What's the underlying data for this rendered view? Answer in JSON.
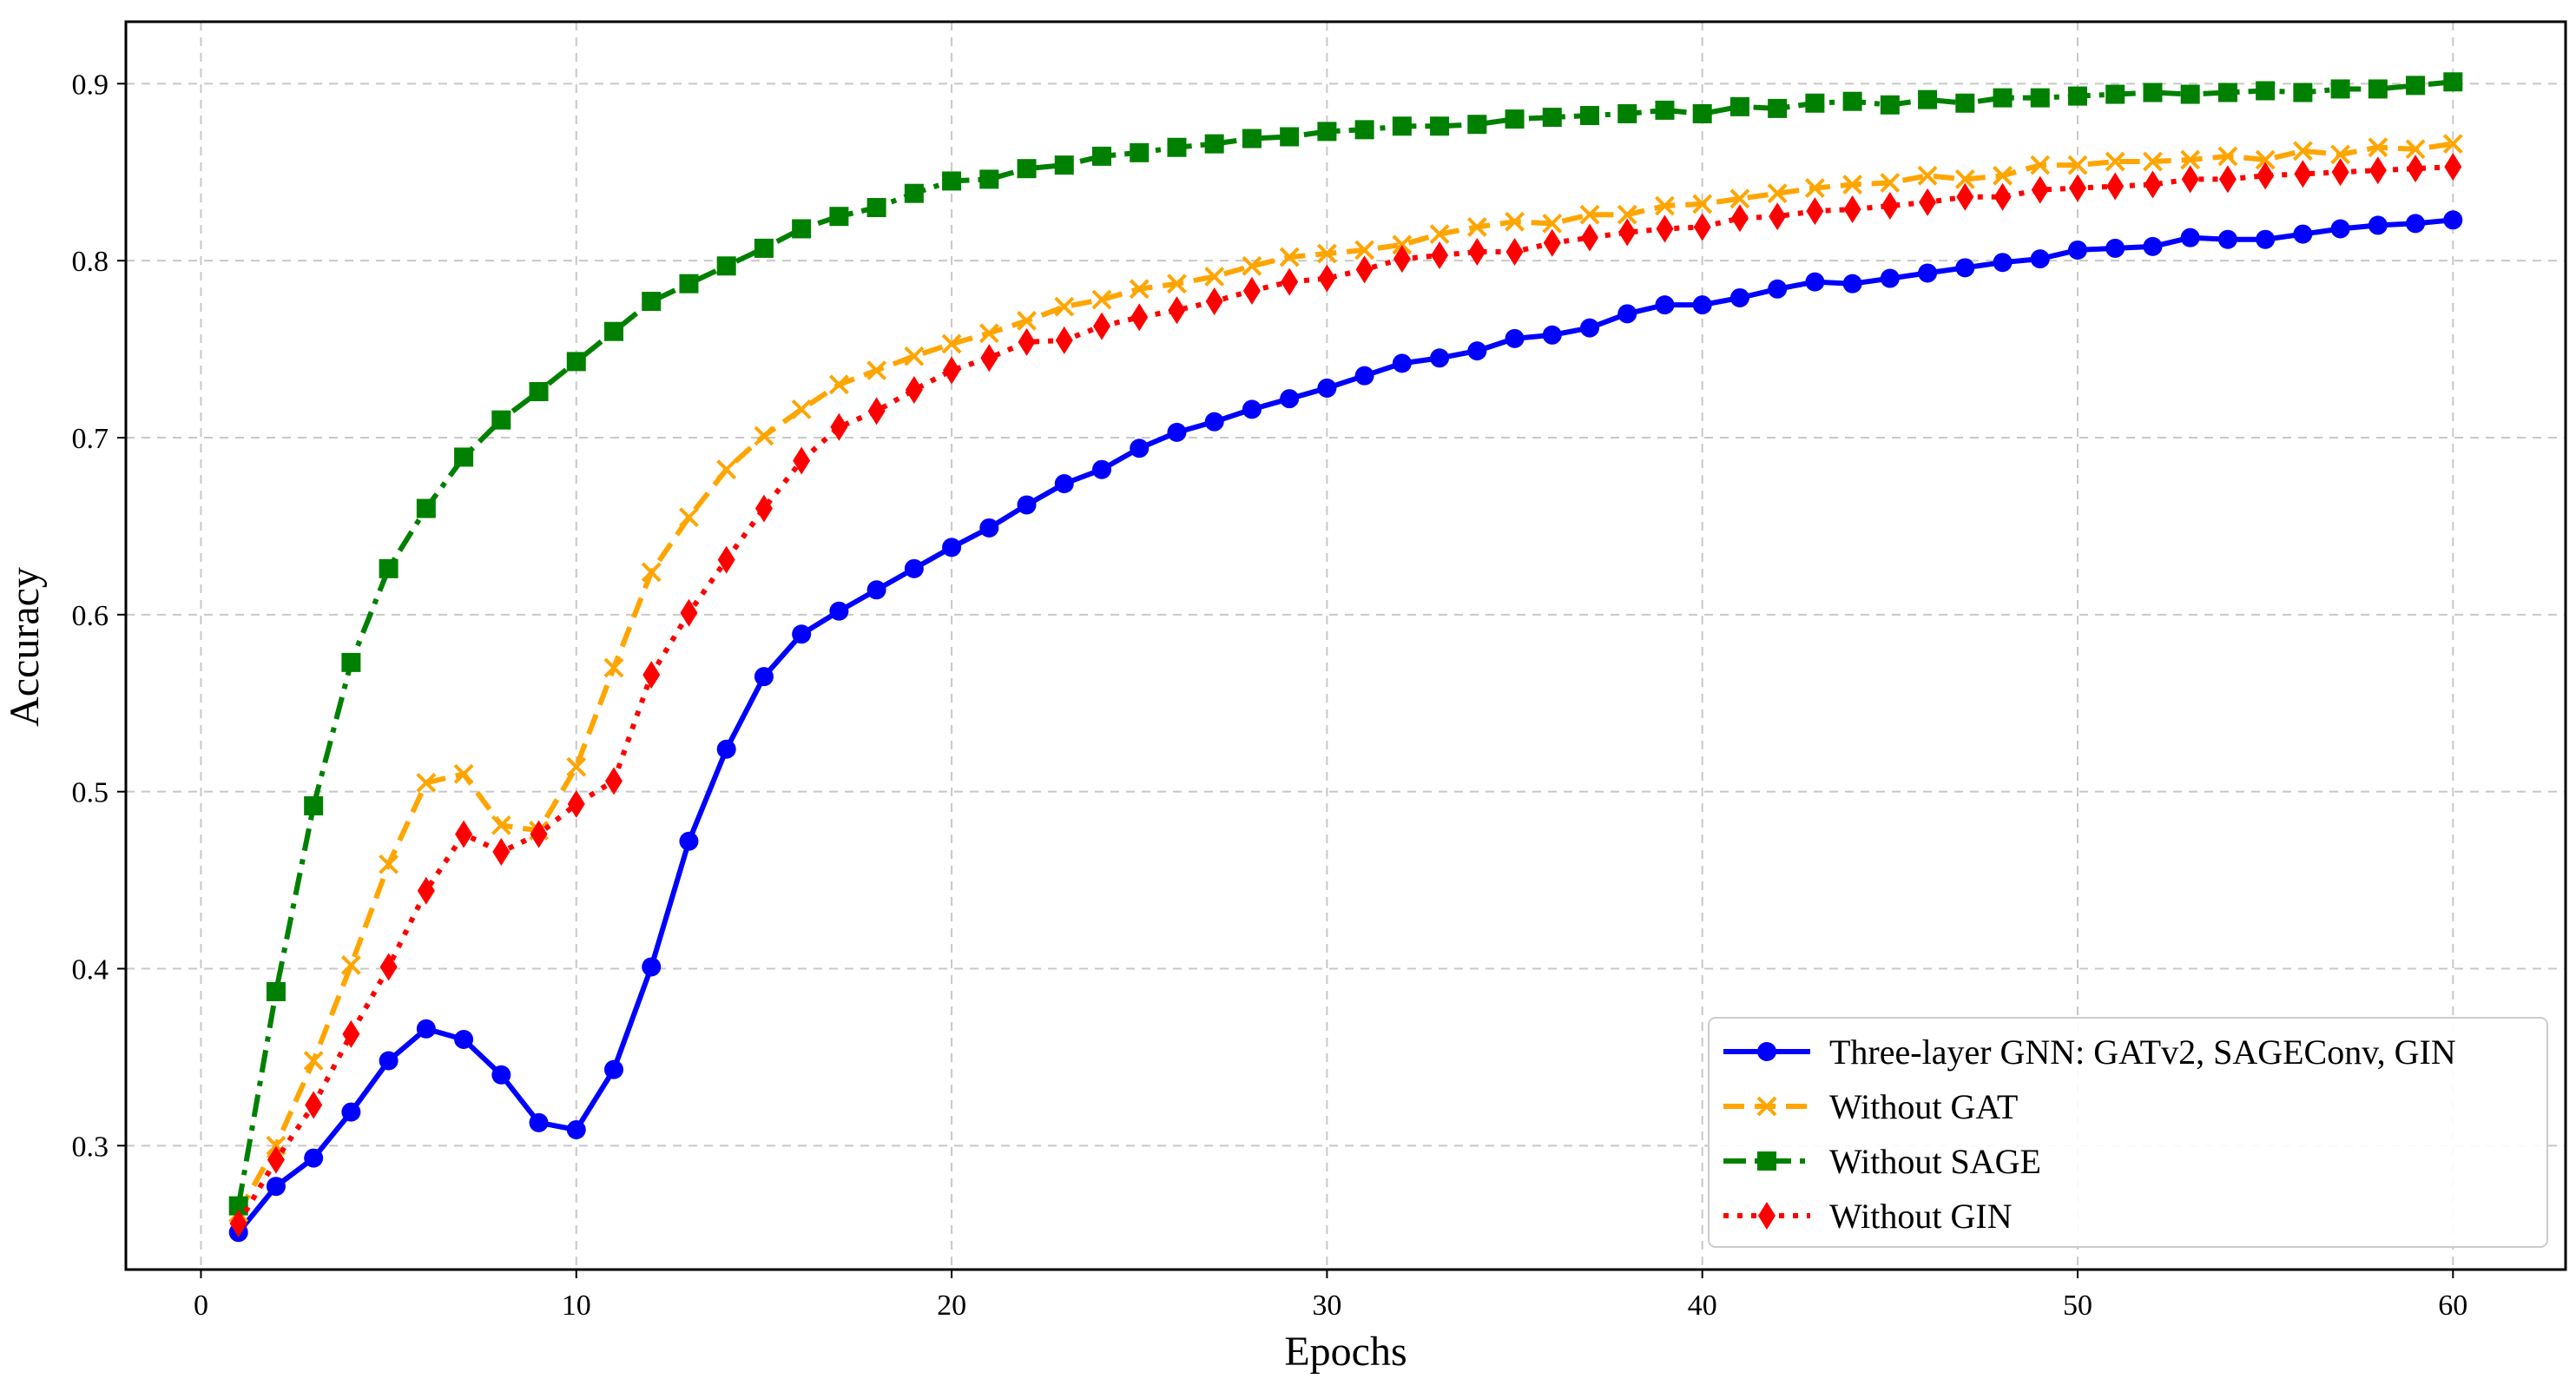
{
  "chart_data": {
    "type": "line",
    "title": "",
    "xlabel": "Epochs",
    "ylabel": "Accuracy",
    "xlim": [
      -2,
      63
    ],
    "ylim": [
      0.23,
      0.935
    ],
    "xticks": [
      0,
      10,
      20,
      30,
      40,
      50,
      60
    ],
    "yticks": [
      0.3,
      0.4,
      0.5,
      0.6,
      0.7,
      0.8,
      0.9
    ],
    "grid": true,
    "legend_position": "lower-right",
    "x": [
      1,
      2,
      3,
      4,
      5,
      6,
      7,
      8,
      9,
      10,
      11,
      12,
      13,
      14,
      15,
      16,
      17,
      18,
      19,
      20,
      21,
      22,
      23,
      24,
      25,
      26,
      27,
      28,
      29,
      30,
      31,
      32,
      33,
      34,
      35,
      36,
      37,
      38,
      39,
      40,
      41,
      42,
      43,
      44,
      45,
      46,
      47,
      48,
      49,
      50,
      51,
      52,
      53,
      54,
      55,
      56,
      57,
      58,
      59,
      60
    ],
    "series": [
      {
        "name": "Three-layer GNN: GATv2, SAGEConv, GIN",
        "color": "#0000ff",
        "marker": "circle",
        "linestyle": "solid",
        "values": [
          0.251,
          0.277,
          0.293,
          0.319,
          0.348,
          0.366,
          0.36,
          0.34,
          0.313,
          0.309,
          0.343,
          0.401,
          0.472,
          0.524,
          0.565,
          0.589,
          0.602,
          0.614,
          0.626,
          0.638,
          0.649,
          0.662,
          0.674,
          0.682,
          0.694,
          0.703,
          0.709,
          0.716,
          0.722,
          0.728,
          0.735,
          0.742,
          0.745,
          0.749,
          0.756,
          0.758,
          0.762,
          0.77,
          0.775,
          0.775,
          0.779,
          0.784,
          0.788,
          0.787,
          0.79,
          0.793,
          0.796,
          0.799,
          0.801,
          0.806,
          0.807,
          0.808,
          0.813,
          0.812,
          0.812,
          0.815,
          0.818,
          0.82,
          0.821,
          0.823
        ]
      },
      {
        "name": "Without GAT",
        "color": "#ffa500",
        "marker": "x",
        "linestyle": "dashed",
        "values": [
          0.262,
          0.3,
          0.348,
          0.402,
          0.459,
          0.505,
          0.51,
          0.481,
          0.478,
          0.514,
          0.57,
          0.624,
          0.655,
          0.682,
          0.701,
          0.716,
          0.73,
          0.738,
          0.746,
          0.753,
          0.759,
          0.766,
          0.774,
          0.778,
          0.784,
          0.787,
          0.791,
          0.797,
          0.802,
          0.804,
          0.806,
          0.809,
          0.815,
          0.819,
          0.822,
          0.821,
          0.826,
          0.826,
          0.831,
          0.832,
          0.835,
          0.838,
          0.841,
          0.843,
          0.844,
          0.848,
          0.846,
          0.848,
          0.854,
          0.854,
          0.856,
          0.856,
          0.857,
          0.859,
          0.857,
          0.862,
          0.86,
          0.864,
          0.863,
          0.866
        ]
      },
      {
        "name": "Without SAGE",
        "color": "#008000",
        "marker": "square",
        "linestyle": "dashdot",
        "values": [
          0.266,
          0.387,
          0.492,
          0.573,
          0.626,
          0.66,
          0.689,
          0.71,
          0.726,
          0.743,
          0.76,
          0.777,
          0.787,
          0.797,
          0.807,
          0.818,
          0.825,
          0.83,
          0.838,
          0.845,
          0.846,
          0.852,
          0.854,
          0.859,
          0.861,
          0.864,
          0.866,
          0.869,
          0.87,
          0.873,
          0.874,
          0.876,
          0.876,
          0.877,
          0.88,
          0.881,
          0.882,
          0.883,
          0.885,
          0.883,
          0.887,
          0.886,
          0.889,
          0.89,
          0.888,
          0.891,
          0.889,
          0.892,
          0.892,
          0.893,
          0.894,
          0.895,
          0.894,
          0.895,
          0.896,
          0.895,
          0.897,
          0.897,
          0.899,
          0.901
        ]
      },
      {
        "name": "Without GIN",
        "color": "#ff0000",
        "marker": "diamond",
        "linestyle": "dotted",
        "values": [
          0.256,
          0.292,
          0.323,
          0.363,
          0.401,
          0.444,
          0.476,
          0.466,
          0.476,
          0.493,
          0.506,
          0.566,
          0.601,
          0.631,
          0.66,
          0.687,
          0.706,
          0.715,
          0.727,
          0.738,
          0.745,
          0.754,
          0.755,
          0.763,
          0.768,
          0.772,
          0.777,
          0.783,
          0.788,
          0.79,
          0.795,
          0.801,
          0.803,
          0.805,
          0.805,
          0.81,
          0.813,
          0.816,
          0.818,
          0.819,
          0.824,
          0.825,
          0.828,
          0.829,
          0.831,
          0.833,
          0.836,
          0.836,
          0.84,
          0.841,
          0.842,
          0.843,
          0.846,
          0.846,
          0.848,
          0.849,
          0.85,
          0.851,
          0.852,
          0.853
        ]
      }
    ]
  }
}
